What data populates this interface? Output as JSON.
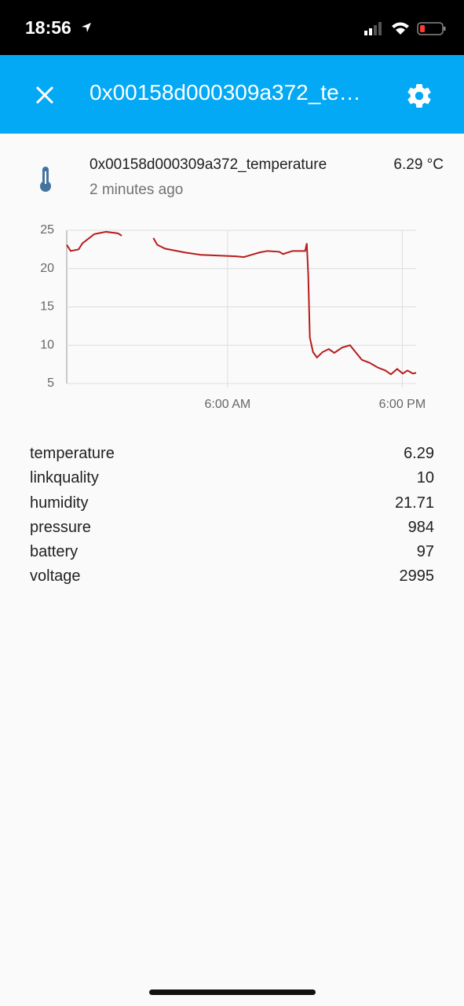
{
  "status_bar": {
    "time": "18:56"
  },
  "header": {
    "title": "0x00158d000309a372_te…"
  },
  "entity": {
    "name": "0x00158d000309a372_temperature",
    "state": "6.29 °C",
    "last_changed": "2 minutes ago"
  },
  "chart_data": {
    "type": "line",
    "x": [
      -5.05,
      -4.78,
      -4.24,
      -3.97,
      -3.43,
      -3.16,
      -2.35,
      -1.54,
      -1.27,
      -0.73,
      0.9,
      1.17,
      1.71,
      3.06,
      4.14,
      6.57,
      7.11,
      7.65,
      8.19,
      8.73,
      9.54,
      9.81,
      10.46,
      11.33,
      11.44,
      11.54,
      11.65,
      11.87,
      12.14,
      12.52,
      12.95,
      13.33,
      13.87,
      14.41,
      14.79,
      15.22,
      15.76,
      16.3,
      16.84,
      17.22,
      17.65,
      18.03,
      18.36,
      18.73,
      18.95
    ],
    "series": [
      {
        "name": "0x00158d000309a372_temperature",
        "color": "#b71c1c",
        "values": [
          23.1,
          22.3,
          22.5,
          23.3,
          24.1,
          24.5,
          24.8,
          24.6,
          24.3,
          null,
          24.0,
          23.1,
          22.6,
          22.1,
          21.8,
          21.6,
          21.5,
          21.8,
          22.1,
          22.3,
          22.2,
          21.9,
          22.3,
          22.3,
          23.3,
          19.2,
          11.0,
          9.1,
          8.4,
          9.1,
          9.5,
          9.0,
          9.7,
          10.0,
          9.1,
          8.1,
          7.7,
          7.1,
          6.7,
          6.2,
          6.9,
          6.3,
          6.7,
          6.3,
          6.4
        ]
      }
    ],
    "xlim": [
      -5.05,
      18.95
    ],
    "xticks": [
      {
        "value": 6,
        "label": "6:00 AM"
      },
      {
        "value": 18,
        "label": "6:00 PM"
      }
    ],
    "ylim": [
      5,
      25
    ],
    "yticks": [
      5,
      10,
      15,
      20,
      25
    ],
    "grid": true
  },
  "attributes": {
    "rows": [
      [
        "temperature",
        "6.29"
      ],
      [
        "linkquality",
        "10"
      ],
      [
        "humidity",
        "21.71"
      ],
      [
        "pressure",
        "984"
      ],
      [
        "battery",
        "97"
      ],
      [
        "voltage",
        "2995"
      ]
    ]
  }
}
